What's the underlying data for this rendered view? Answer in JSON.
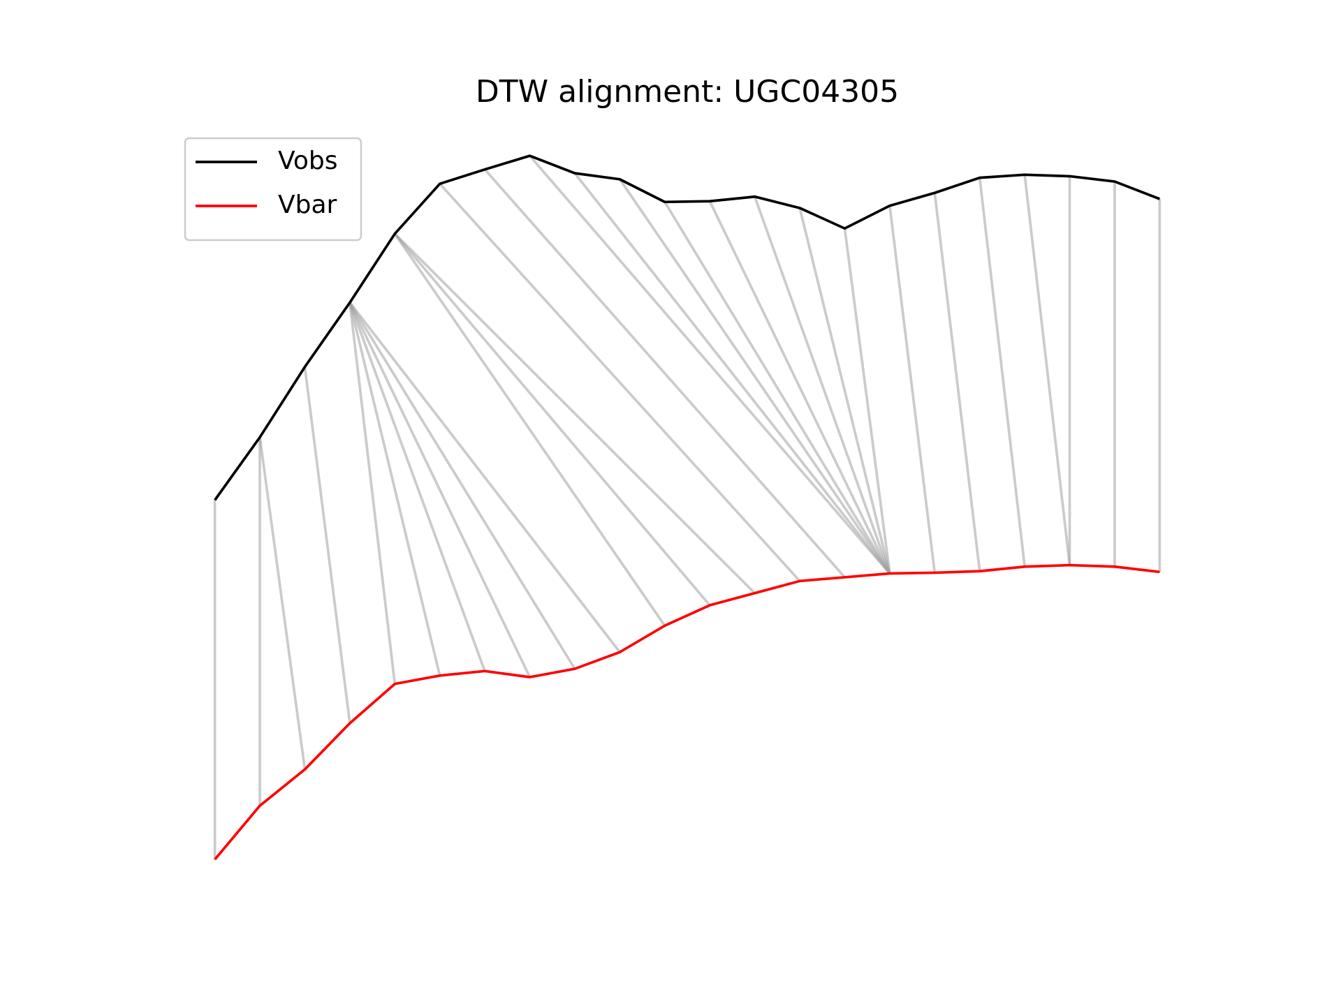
{
  "chart_data": {
    "type": "line",
    "title": "DTW alignment: UGC04305",
    "x": [
      0,
      1,
      2,
      3,
      4,
      5,
      6,
      7,
      8,
      9,
      10,
      11,
      12,
      13,
      14,
      15,
      16,
      17,
      18,
      19,
      20,
      21
    ],
    "xlim": [
      -1.05,
      22.05
    ],
    "ylim": [
      -2.65,
      99.65
    ],
    "legend": "upper left",
    "series": [
      {
        "name": "Vobs",
        "color": "#000000",
        "values": [
          49.5,
          57.8,
          67.1,
          75.6,
          84.7,
          91.3,
          93.2,
          95.0,
          92.7,
          91.9,
          88.9,
          89.0,
          89.6,
          88.1,
          85.4,
          88.4,
          90.1,
          92.1,
          92.5,
          92.3,
          91.6,
          89.3
        ]
      },
      {
        "name": "Vbar",
        "color": "#ff0000",
        "values": [
          2.0,
          9.1,
          13.9,
          20.0,
          25.2,
          26.3,
          26.9,
          26.1,
          27.2,
          29.4,
          32.9,
          35.6,
          37.2,
          38.8,
          39.3,
          39.8,
          39.9,
          40.1,
          40.7,
          40.9,
          40.7,
          40.0
        ]
      }
    ],
    "alignment": [
      [
        0,
        0
      ],
      [
        1,
        1
      ],
      [
        1,
        2
      ],
      [
        2,
        3
      ],
      [
        3,
        4
      ],
      [
        3,
        5
      ],
      [
        3,
        6
      ],
      [
        3,
        7
      ],
      [
        3,
        8
      ],
      [
        3,
        9
      ],
      [
        4,
        10
      ],
      [
        4,
        11
      ],
      [
        4,
        12
      ],
      [
        5,
        13
      ],
      [
        6,
        14
      ],
      [
        7,
        15
      ],
      [
        8,
        15
      ],
      [
        9,
        15
      ],
      [
        10,
        15
      ],
      [
        11,
        15
      ],
      [
        12,
        15
      ],
      [
        13,
        15
      ],
      [
        14,
        15
      ],
      [
        15,
        16
      ],
      [
        16,
        17
      ],
      [
        17,
        18
      ],
      [
        18,
        19
      ],
      [
        19,
        19
      ],
      [
        20,
        20
      ],
      [
        21,
        21
      ]
    ],
    "alignment_color": "#a0a0a0"
  }
}
